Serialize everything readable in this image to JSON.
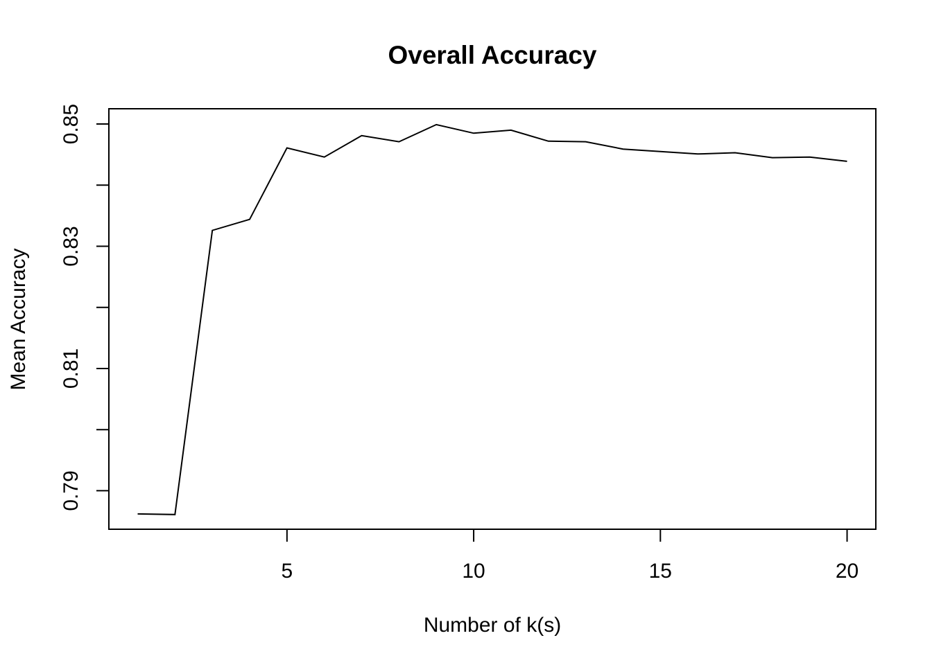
{
  "chart_data": {
    "type": "line",
    "title": "Overall Accuracy",
    "xlabel": "Number of k(s)",
    "ylabel": "Mean Accuracy",
    "x": [
      1,
      2,
      3,
      4,
      5,
      6,
      7,
      8,
      9,
      10,
      11,
      12,
      13,
      14,
      15,
      16,
      17,
      18,
      19,
      20
    ],
    "series": [
      {
        "values": [
          0.7862,
          0.7861,
          0.8326,
          0.8344,
          0.8461,
          0.8446,
          0.8481,
          0.8471,
          0.8499,
          0.8485,
          0.849,
          0.8472,
          0.8471,
          0.8459,
          0.8455,
          0.8451,
          0.8453,
          0.8445,
          0.8446,
          0.8439
        ]
      }
    ],
    "xlim": [
      0.23,
      20.77
    ],
    "ylim": [
      0.7837,
      0.8525
    ],
    "x_ticks": [
      5,
      10,
      15,
      20
    ],
    "x_tick_labels": [
      "5",
      "10",
      "15",
      "20"
    ],
    "y_ticks": [
      0.79,
      0.8,
      0.81,
      0.82,
      0.83,
      0.84,
      0.85
    ],
    "y_tick_labels": [
      "0.79",
      "",
      "0.81",
      "",
      "0.83",
      "",
      "0.85"
    ],
    "grid": false,
    "line_color": "#000000"
  }
}
